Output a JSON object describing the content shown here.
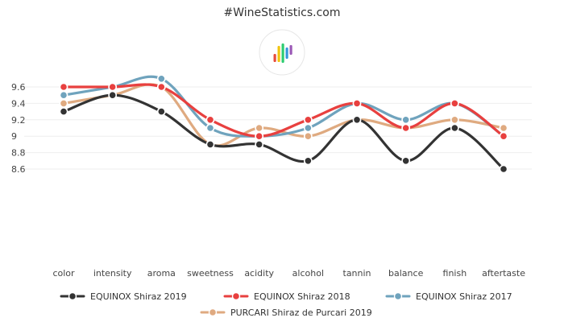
{
  "header": {
    "site_title": "#WineStatistics.com",
    "logo_icon": "bar-chart-logo-icon",
    "logo_colors": [
      "#e74c3c",
      "#f1c40f",
      "#2ecc71",
      "#3498db",
      "#9b59b6"
    ]
  },
  "chart_data": {
    "type": "line",
    "title": "#WineStatistics.com",
    "xlabel": "",
    "ylabel": "",
    "categories": [
      "color",
      "intensity",
      "aroma",
      "sweetness",
      "acidity",
      "alcohol",
      "tannin",
      "balance",
      "finish",
      "aftertaste"
    ],
    "ylim": [
      8.5,
      9.8
    ],
    "yticks": [
      8.6,
      8.8,
      9,
      9.2,
      9.4,
      9.6
    ],
    "ytick_labels": [
      "8.6",
      "8.8",
      "9",
      "9.2",
      "9.4",
      "9.6"
    ],
    "grid": true,
    "legend_position": "bottom-center",
    "series": [
      {
        "name": "EQUINOX Shiraz 2019",
        "color": "#333333",
        "values": [
          9.3,
          9.5,
          9.3,
          8.9,
          8.9,
          8.7,
          9.2,
          8.7,
          9.1,
          8.6
        ]
      },
      {
        "name": "EQUINOX Shiraz 2018",
        "color": "#e8403f",
        "values": [
          9.6,
          9.6,
          9.6,
          9.2,
          9.0,
          9.2,
          9.4,
          9.1,
          9.4,
          9.0
        ]
      },
      {
        "name": "EQUINOX Shiraz 2017",
        "color": "#6fa3bd",
        "values": [
          9.5,
          9.6,
          9.7,
          9.1,
          9.0,
          9.1,
          9.4,
          9.2,
          9.4,
          9.0
        ]
      },
      {
        "name": "PURCARI Shiraz de Purcari 2019",
        "color": "#dfaa80",
        "values": [
          9.4,
          9.5,
          9.6,
          8.9,
          9.1,
          9.0,
          9.2,
          9.1,
          9.2,
          9.1
        ]
      }
    ]
  }
}
